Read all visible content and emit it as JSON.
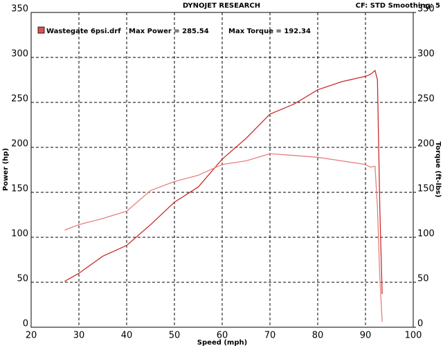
{
  "chart_data": {
    "type": "line",
    "title": "DYNOJET RESEARCH",
    "subtitle": "CF: STD  Smoothing: 5",
    "x_label": "Speed (mph)",
    "y_label": "Power (hp)",
    "y2_label": "Torque (ft-lbs)",
    "max_power_label": "Max Power = 285.54",
    "max_torque_label": "Max Torque = 192.34",
    "x": [
      27,
      30,
      35,
      40,
      45,
      50,
      55,
      60,
      65,
      70,
      75,
      80,
      85,
      90,
      91,
      92,
      92.5,
      93,
      93.5
    ],
    "series": [
      {
        "name": "Wastegate 6psi.drf",
        "color": "#cc2a2a",
        "values": [
          51,
          60,
          79,
          91,
          114,
          139,
          156,
          187,
          210,
          237,
          248,
          264,
          273,
          279,
          281,
          285.5,
          275,
          133,
          37
        ]
      },
      {
        "color": "#e87e7e",
        "axis": "y2",
        "values": [
          108,
          114,
          121,
          129,
          152,
          162,
          169,
          181,
          185,
          193,
          191,
          189,
          185,
          181,
          178,
          179,
          133,
          56,
          6
        ]
      }
    ],
    "xlim": [
      20,
      100
    ],
    "xticks": [
      20,
      30,
      40,
      50,
      60,
      70,
      80,
      90,
      100
    ],
    "ylim": [
      0,
      350
    ],
    "yticks": [
      0,
      50,
      100,
      150,
      200,
      250,
      300,
      350
    ],
    "y2lim": [
      0,
      350
    ],
    "y2ticks": [
      0,
      50,
      100,
      150,
      200,
      250,
      300,
      350
    ],
    "grid": true
  }
}
